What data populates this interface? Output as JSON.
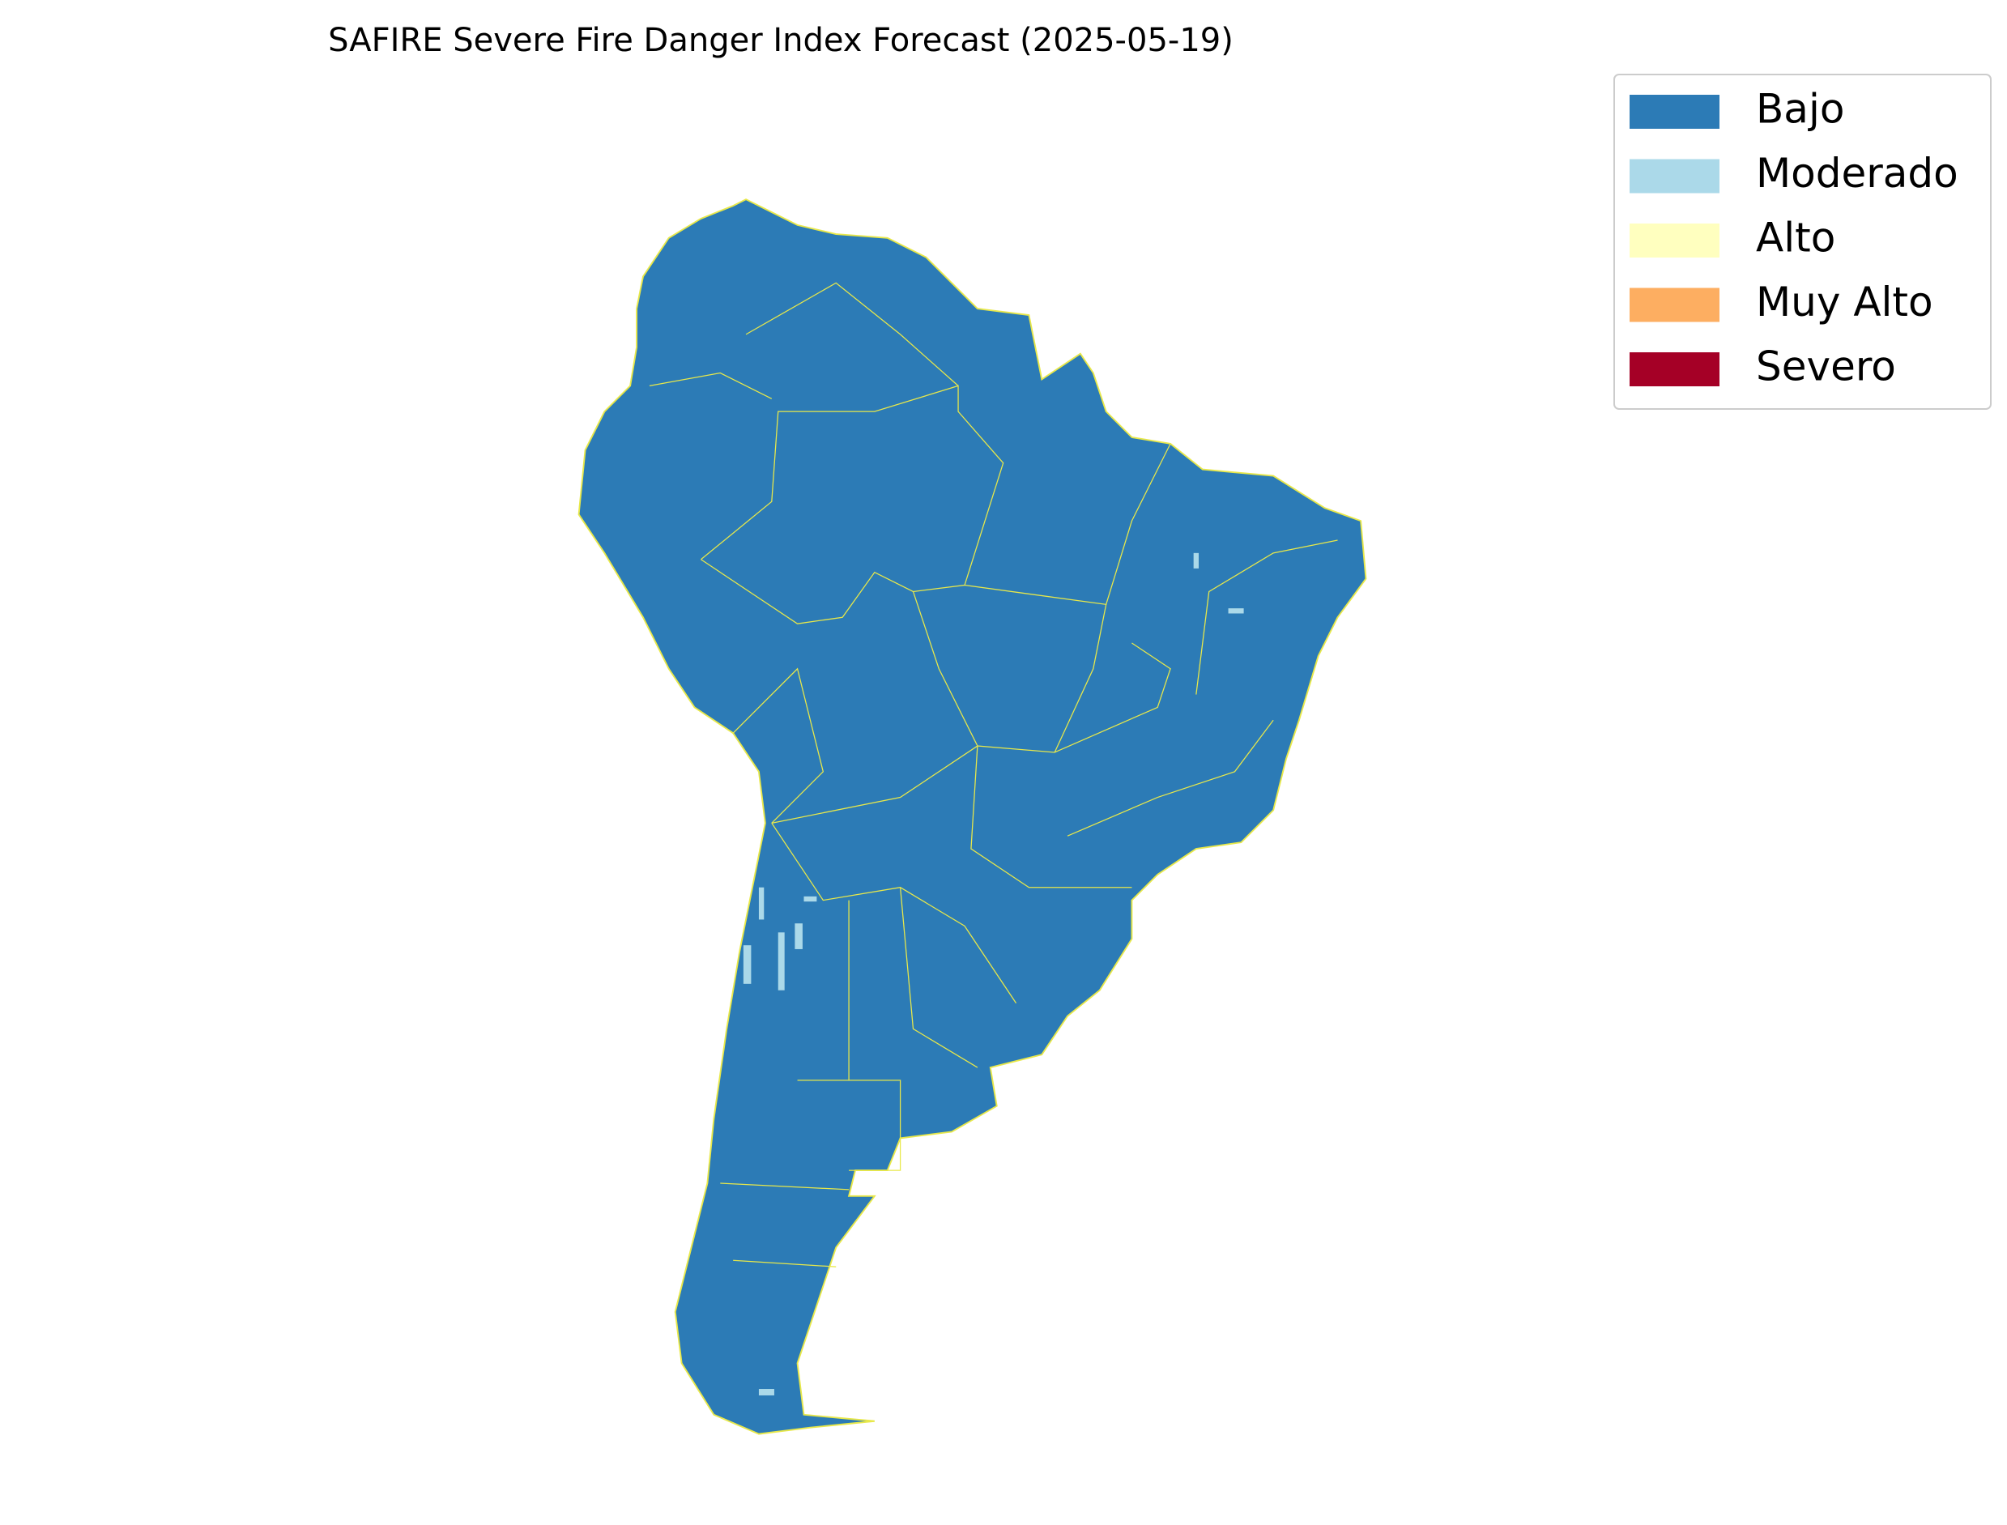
{
  "title": "SAFIRE Severe Fire Danger Index Forecast (2025-05-19)",
  "legend": {
    "items": [
      {
        "label": "Bajo",
        "color": "#2c7bb6"
      },
      {
        "label": "Moderado",
        "color": "#abd9e9"
      },
      {
        "label": "Alto",
        "color": "#ffffbf"
      },
      {
        "label": "Muy Alto",
        "color": "#fdae61"
      },
      {
        "label": "Severo",
        "color": "#a50026"
      }
    ]
  }
}
